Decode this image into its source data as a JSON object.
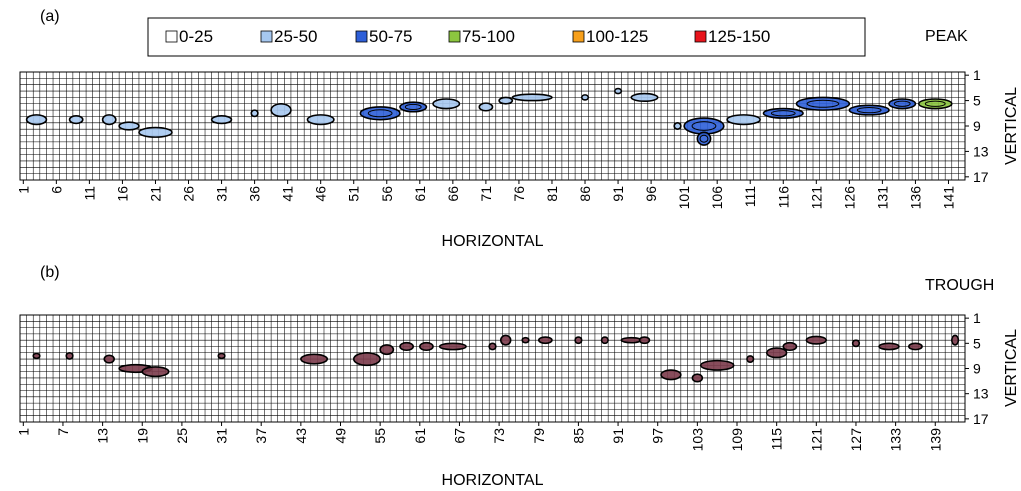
{
  "legend": {
    "items": [
      {
        "label": "0-25",
        "color": "#ffffff"
      },
      {
        "label": "25-50",
        "color": "#a6c8f0"
      },
      {
        "label": "50-75",
        "color": "#2e5fd8"
      },
      {
        "label": "75-100",
        "color": "#8cc63f"
      },
      {
        "label": "100-125",
        "color": "#f7a01c"
      },
      {
        "label": "125-150",
        "color": "#e8141c"
      }
    ]
  },
  "chart_data": [
    {
      "type": "heatmap",
      "panel_label": "(a)",
      "title": "PEAK",
      "xlabel": "HORIZONTAL",
      "ylabel": "VERTICAL",
      "x_range": [
        1,
        143
      ],
      "y_range": [
        1,
        17
      ],
      "x_ticks": [
        1,
        6,
        11,
        16,
        21,
        26,
        31,
        36,
        41,
        46,
        51,
        56,
        61,
        66,
        71,
        76,
        81,
        86,
        91,
        96,
        101,
        106,
        111,
        116,
        121,
        126,
        131,
        136,
        141
      ],
      "y_ticks": [
        1,
        5,
        9,
        13,
        17
      ],
      "fill_color": "#a6c8f0",
      "grid": true,
      "regions": [
        {
          "cx": 3,
          "cy": 8,
          "w": 3,
          "h": 1.5,
          "level": 1
        },
        {
          "cx": 9,
          "cy": 8,
          "w": 2,
          "h": 1.2,
          "level": 1
        },
        {
          "cx": 14,
          "cy": 8,
          "w": 2,
          "h": 1.5,
          "level": 1
        },
        {
          "cx": 17,
          "cy": 9,
          "w": 3,
          "h": 1.2,
          "level": 1
        },
        {
          "cx": 21,
          "cy": 10,
          "w": 5,
          "h": 1.5,
          "level": 1
        },
        {
          "cx": 31,
          "cy": 8,
          "w": 3,
          "h": 1.2,
          "level": 1
        },
        {
          "cx": 36,
          "cy": 7,
          "w": 1,
          "h": 1,
          "level": 1
        },
        {
          "cx": 40,
          "cy": 6.5,
          "w": 3,
          "h": 2,
          "level": 1
        },
        {
          "cx": 46,
          "cy": 8,
          "w": 4,
          "h": 1.5,
          "level": 1
        },
        {
          "cx": 55,
          "cy": 7,
          "w": 6,
          "h": 2,
          "level": 2
        },
        {
          "cx": 60,
          "cy": 6,
          "w": 4,
          "h": 1.5,
          "level": 2
        },
        {
          "cx": 65,
          "cy": 5.5,
          "w": 4,
          "h": 1.5,
          "level": 1
        },
        {
          "cx": 71,
          "cy": 6,
          "w": 2,
          "h": 1.2,
          "level": 1
        },
        {
          "cx": 74,
          "cy": 5,
          "w": 2,
          "h": 1,
          "level": 1
        },
        {
          "cx": 78,
          "cy": 4.5,
          "w": 6,
          "h": 1,
          "level": 1
        },
        {
          "cx": 86,
          "cy": 4.5,
          "w": 1,
          "h": 0.8,
          "level": 1
        },
        {
          "cx": 91,
          "cy": 3.5,
          "w": 1,
          "h": 0.8,
          "level": 1
        },
        {
          "cx": 95,
          "cy": 4.5,
          "w": 4,
          "h": 1.2,
          "level": 1
        },
        {
          "cx": 100,
          "cy": 9,
          "w": 1,
          "h": 1,
          "level": 1
        },
        {
          "cx": 104,
          "cy": 9,
          "w": 6,
          "h": 2.5,
          "level": 2
        },
        {
          "cx": 104,
          "cy": 11,
          "w": 2,
          "h": 2,
          "level": 2
        },
        {
          "cx": 110,
          "cy": 8,
          "w": 5,
          "h": 1.5,
          "level": 1
        },
        {
          "cx": 116,
          "cy": 7,
          "w": 6,
          "h": 1.5,
          "level": 2
        },
        {
          "cx": 122,
          "cy": 5.5,
          "w": 8,
          "h": 2,
          "level": 2
        },
        {
          "cx": 129,
          "cy": 6.5,
          "w": 6,
          "h": 1.5,
          "level": 2
        },
        {
          "cx": 134,
          "cy": 5.5,
          "w": 4,
          "h": 1.5,
          "level": 2
        },
        {
          "cx": 139,
          "cy": 5.5,
          "w": 5,
          "h": 1.5,
          "level": 3
        }
      ]
    },
    {
      "type": "heatmap",
      "panel_label": "(b)",
      "title": "TROUGH",
      "xlabel": "HORIZONTAL",
      "ylabel": "VERTICAL",
      "x_range": [
        1,
        143
      ],
      "y_range": [
        1,
        17
      ],
      "x_ticks": [
        1,
        7,
        13,
        19,
        25,
        31,
        37,
        43,
        49,
        55,
        61,
        67,
        73,
        79,
        85,
        91,
        97,
        103,
        109,
        115,
        121,
        127,
        133,
        139
      ],
      "y_ticks": [
        1,
        5,
        9,
        13,
        17
      ],
      "fill_color": "#7a3a4a",
      "grid": true,
      "regions": [
        {
          "cx": 3,
          "cy": 7,
          "w": 1,
          "h": 0.8,
          "level": 1
        },
        {
          "cx": 8,
          "cy": 7,
          "w": 1,
          "h": 1,
          "level": 1
        },
        {
          "cx": 14,
          "cy": 7.5,
          "w": 1.5,
          "h": 1.2,
          "level": 1
        },
        {
          "cx": 18,
          "cy": 9,
          "w": 5,
          "h": 1.2,
          "level": 1
        },
        {
          "cx": 21,
          "cy": 9.5,
          "w": 4,
          "h": 1.5,
          "level": 1
        },
        {
          "cx": 31,
          "cy": 7,
          "w": 1,
          "h": 0.8,
          "level": 1
        },
        {
          "cx": 45,
          "cy": 7.5,
          "w": 4,
          "h": 1.5,
          "level": 1
        },
        {
          "cx": 53,
          "cy": 7.5,
          "w": 4,
          "h": 2,
          "level": 1
        },
        {
          "cx": 56,
          "cy": 6,
          "w": 2,
          "h": 1.5,
          "level": 1
        },
        {
          "cx": 59,
          "cy": 5.5,
          "w": 2,
          "h": 1.2,
          "level": 1
        },
        {
          "cx": 62,
          "cy": 5.5,
          "w": 2,
          "h": 1.2,
          "level": 1
        },
        {
          "cx": 66,
          "cy": 5.5,
          "w": 4,
          "h": 1,
          "level": 1
        },
        {
          "cx": 72,
          "cy": 5.5,
          "w": 1,
          "h": 1,
          "level": 1
        },
        {
          "cx": 74,
          "cy": 4.5,
          "w": 1.5,
          "h": 1.5,
          "level": 1
        },
        {
          "cx": 77,
          "cy": 4.5,
          "w": 1,
          "h": 0.8,
          "level": 1
        },
        {
          "cx": 80,
          "cy": 4.5,
          "w": 2,
          "h": 1,
          "level": 1
        },
        {
          "cx": 85,
          "cy": 4.5,
          "w": 1,
          "h": 1,
          "level": 1
        },
        {
          "cx": 89,
          "cy": 4.5,
          "w": 1,
          "h": 1,
          "level": 1
        },
        {
          "cx": 93,
          "cy": 4.5,
          "w": 3,
          "h": 0.8,
          "level": 1
        },
        {
          "cx": 95,
          "cy": 4.5,
          "w": 1.5,
          "h": 1,
          "level": 1
        },
        {
          "cx": 99,
          "cy": 10,
          "w": 3,
          "h": 1.5,
          "level": 1
        },
        {
          "cx": 103,
          "cy": 10.5,
          "w": 1.5,
          "h": 1.2,
          "level": 1
        },
        {
          "cx": 106,
          "cy": 8.5,
          "w": 5,
          "h": 1.5,
          "level": 1
        },
        {
          "cx": 111,
          "cy": 7.5,
          "w": 1,
          "h": 1,
          "level": 1
        },
        {
          "cx": 115,
          "cy": 6.5,
          "w": 3,
          "h": 1.5,
          "level": 1
        },
        {
          "cx": 117,
          "cy": 5.5,
          "w": 2,
          "h": 1.2,
          "level": 1
        },
        {
          "cx": 121,
          "cy": 4.5,
          "w": 3,
          "h": 1.2,
          "level": 1
        },
        {
          "cx": 127,
          "cy": 5,
          "w": 1,
          "h": 1,
          "level": 1
        },
        {
          "cx": 132,
          "cy": 5.5,
          "w": 3,
          "h": 1,
          "level": 1
        },
        {
          "cx": 136,
          "cy": 5.5,
          "w": 2,
          "h": 1,
          "level": 1
        },
        {
          "cx": 142,
          "cy": 4.5,
          "w": 1,
          "h": 1.5,
          "level": 1
        }
      ]
    }
  ]
}
